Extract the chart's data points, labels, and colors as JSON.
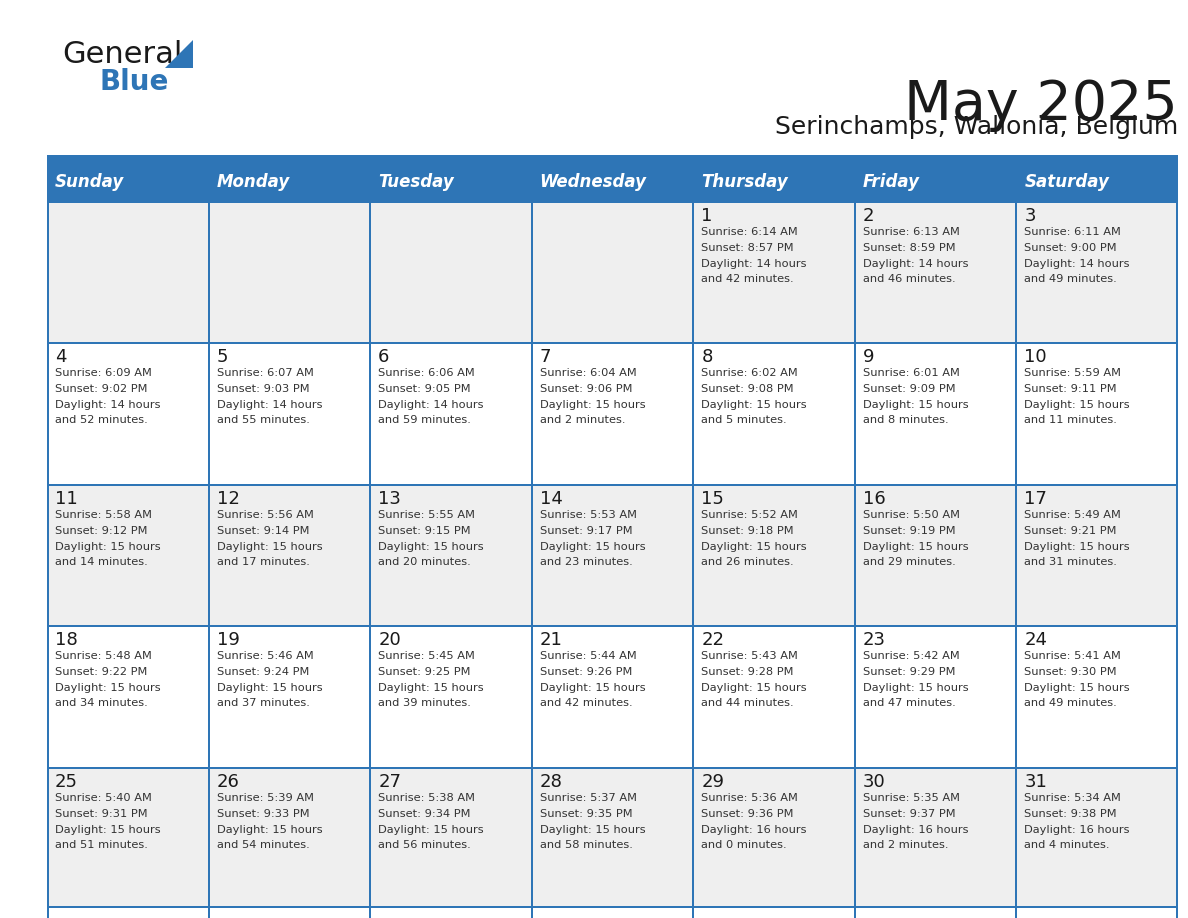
{
  "title": "May 2025",
  "subtitle": "Serinchamps, Wallonia, Belgium",
  "header_color": "#2E75B6",
  "header_text_color": "#FFFFFF",
  "day_names": [
    "Sunday",
    "Monday",
    "Tuesday",
    "Wednesday",
    "Thursday",
    "Friday",
    "Saturday"
  ],
  "background_color": "#FFFFFF",
  "cell_bg_even": "#EFEFEF",
  "cell_bg_odd": "#FFFFFF",
  "cell_border_color": "#2E75B6",
  "text_color": "#333333",
  "days": [
    {
      "day": 1,
      "col": 4,
      "row": 0,
      "sunrise": "6:14 AM",
      "sunset": "8:57 PM",
      "daylight": "14 hours and 42 minutes"
    },
    {
      "day": 2,
      "col": 5,
      "row": 0,
      "sunrise": "6:13 AM",
      "sunset": "8:59 PM",
      "daylight": "14 hours and 46 minutes"
    },
    {
      "day": 3,
      "col": 6,
      "row": 0,
      "sunrise": "6:11 AM",
      "sunset": "9:00 PM",
      "daylight": "14 hours and 49 minutes"
    },
    {
      "day": 4,
      "col": 0,
      "row": 1,
      "sunrise": "6:09 AM",
      "sunset": "9:02 PM",
      "daylight": "14 hours and 52 minutes"
    },
    {
      "day": 5,
      "col": 1,
      "row": 1,
      "sunrise": "6:07 AM",
      "sunset": "9:03 PM",
      "daylight": "14 hours and 55 minutes"
    },
    {
      "day": 6,
      "col": 2,
      "row": 1,
      "sunrise": "6:06 AM",
      "sunset": "9:05 PM",
      "daylight": "14 hours and 59 minutes"
    },
    {
      "day": 7,
      "col": 3,
      "row": 1,
      "sunrise": "6:04 AM",
      "sunset": "9:06 PM",
      "daylight": "15 hours and 2 minutes"
    },
    {
      "day": 8,
      "col": 4,
      "row": 1,
      "sunrise": "6:02 AM",
      "sunset": "9:08 PM",
      "daylight": "15 hours and 5 minutes"
    },
    {
      "day": 9,
      "col": 5,
      "row": 1,
      "sunrise": "6:01 AM",
      "sunset": "9:09 PM",
      "daylight": "15 hours and 8 minutes"
    },
    {
      "day": 10,
      "col": 6,
      "row": 1,
      "sunrise": "5:59 AM",
      "sunset": "9:11 PM",
      "daylight": "15 hours and 11 minutes"
    },
    {
      "day": 11,
      "col": 0,
      "row": 2,
      "sunrise": "5:58 AM",
      "sunset": "9:12 PM",
      "daylight": "15 hours and 14 minutes"
    },
    {
      "day": 12,
      "col": 1,
      "row": 2,
      "sunrise": "5:56 AM",
      "sunset": "9:14 PM",
      "daylight": "15 hours and 17 minutes"
    },
    {
      "day": 13,
      "col": 2,
      "row": 2,
      "sunrise": "5:55 AM",
      "sunset": "9:15 PM",
      "daylight": "15 hours and 20 minutes"
    },
    {
      "day": 14,
      "col": 3,
      "row": 2,
      "sunrise": "5:53 AM",
      "sunset": "9:17 PM",
      "daylight": "15 hours and 23 minutes"
    },
    {
      "day": 15,
      "col": 4,
      "row": 2,
      "sunrise": "5:52 AM",
      "sunset": "9:18 PM",
      "daylight": "15 hours and 26 minutes"
    },
    {
      "day": 16,
      "col": 5,
      "row": 2,
      "sunrise": "5:50 AM",
      "sunset": "9:19 PM",
      "daylight": "15 hours and 29 minutes"
    },
    {
      "day": 17,
      "col": 6,
      "row": 2,
      "sunrise": "5:49 AM",
      "sunset": "9:21 PM",
      "daylight": "15 hours and 31 minutes"
    },
    {
      "day": 18,
      "col": 0,
      "row": 3,
      "sunrise": "5:48 AM",
      "sunset": "9:22 PM",
      "daylight": "15 hours and 34 minutes"
    },
    {
      "day": 19,
      "col": 1,
      "row": 3,
      "sunrise": "5:46 AM",
      "sunset": "9:24 PM",
      "daylight": "15 hours and 37 minutes"
    },
    {
      "day": 20,
      "col": 2,
      "row": 3,
      "sunrise": "5:45 AM",
      "sunset": "9:25 PM",
      "daylight": "15 hours and 39 minutes"
    },
    {
      "day": 21,
      "col": 3,
      "row": 3,
      "sunrise": "5:44 AM",
      "sunset": "9:26 PM",
      "daylight": "15 hours and 42 minutes"
    },
    {
      "day": 22,
      "col": 4,
      "row": 3,
      "sunrise": "5:43 AM",
      "sunset": "9:28 PM",
      "daylight": "15 hours and 44 minutes"
    },
    {
      "day": 23,
      "col": 5,
      "row": 3,
      "sunrise": "5:42 AM",
      "sunset": "9:29 PM",
      "daylight": "15 hours and 47 minutes"
    },
    {
      "day": 24,
      "col": 6,
      "row": 3,
      "sunrise": "5:41 AM",
      "sunset": "9:30 PM",
      "daylight": "15 hours and 49 minutes"
    },
    {
      "day": 25,
      "col": 0,
      "row": 4,
      "sunrise": "5:40 AM",
      "sunset": "9:31 PM",
      "daylight": "15 hours and 51 minutes"
    },
    {
      "day": 26,
      "col": 1,
      "row": 4,
      "sunrise": "5:39 AM",
      "sunset": "9:33 PM",
      "daylight": "15 hours and 54 minutes"
    },
    {
      "day": 27,
      "col": 2,
      "row": 4,
      "sunrise": "5:38 AM",
      "sunset": "9:34 PM",
      "daylight": "15 hours and 56 minutes"
    },
    {
      "day": 28,
      "col": 3,
      "row": 4,
      "sunrise": "5:37 AM",
      "sunset": "9:35 PM",
      "daylight": "15 hours and 58 minutes"
    },
    {
      "day": 29,
      "col": 4,
      "row": 4,
      "sunrise": "5:36 AM",
      "sunset": "9:36 PM",
      "daylight": "16 hours and 0 minutes"
    },
    {
      "day": 30,
      "col": 5,
      "row": 4,
      "sunrise": "5:35 AM",
      "sunset": "9:37 PM",
      "daylight": "16 hours and 2 minutes"
    },
    {
      "day": 31,
      "col": 6,
      "row": 4,
      "sunrise": "5:34 AM",
      "sunset": "9:38 PM",
      "daylight": "16 hours and 4 minutes"
    }
  ]
}
